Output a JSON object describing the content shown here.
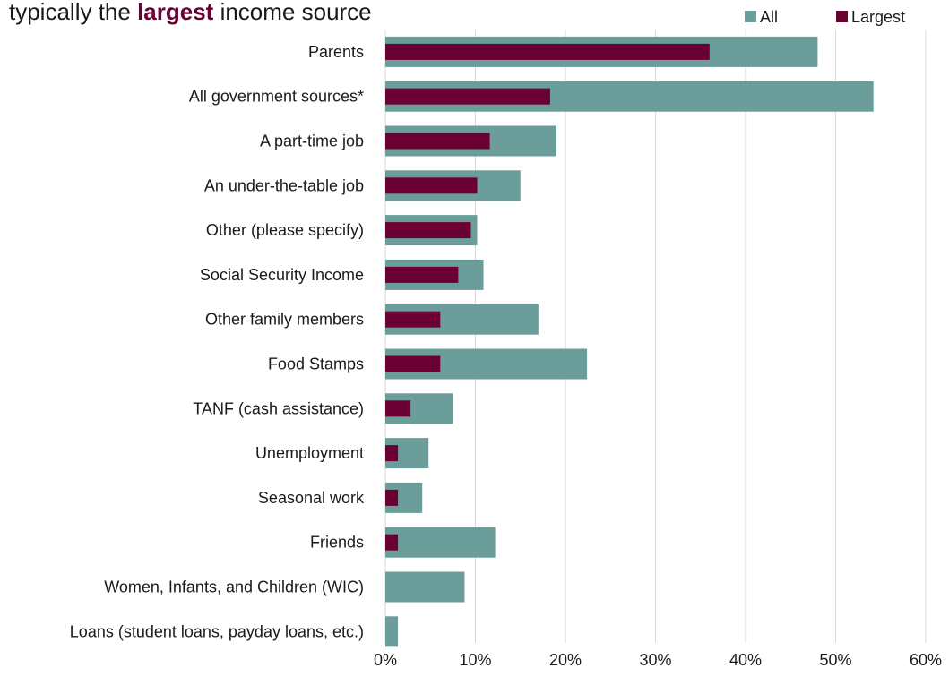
{
  "title": {
    "prefix": "typically the ",
    "highlight": "largest",
    "suffix": " income source"
  },
  "chart_data": {
    "type": "bar",
    "orientation": "horizontal",
    "title": "typically the largest income source",
    "categories": [
      "Parents",
      "All government sources*",
      "A part-time job",
      "An under-the-table job",
      "Other (please specify)",
      "Social Security Income",
      "Other family members",
      "Food Stamps",
      "TANF (cash assistance)",
      "Unemployment",
      "Seasonal work",
      "Friends",
      "Women, Infants, and Children (WIC)",
      "Loans (student loans, payday loans, etc.)"
    ],
    "series": [
      {
        "name": "All",
        "color": "#6b9e9a",
        "values": [
          48,
          54.2,
          19,
          15,
          10.2,
          10.9,
          17,
          22.4,
          7.5,
          4.8,
          4.1,
          12.2,
          8.8,
          1.4
        ]
      },
      {
        "name": "Largest",
        "color": "#6b0033",
        "values": [
          36,
          18.3,
          11.6,
          10.2,
          9.5,
          8.1,
          6.1,
          6.1,
          2.8,
          1.4,
          1.4,
          1.4,
          0,
          0
        ]
      }
    ],
    "xlim": [
      0,
      60
    ],
    "xticks": [
      "0%",
      "10%",
      "20%",
      "30%",
      "40%",
      "50%",
      "60%"
    ],
    "grid": true,
    "legend_position": "top-right"
  }
}
